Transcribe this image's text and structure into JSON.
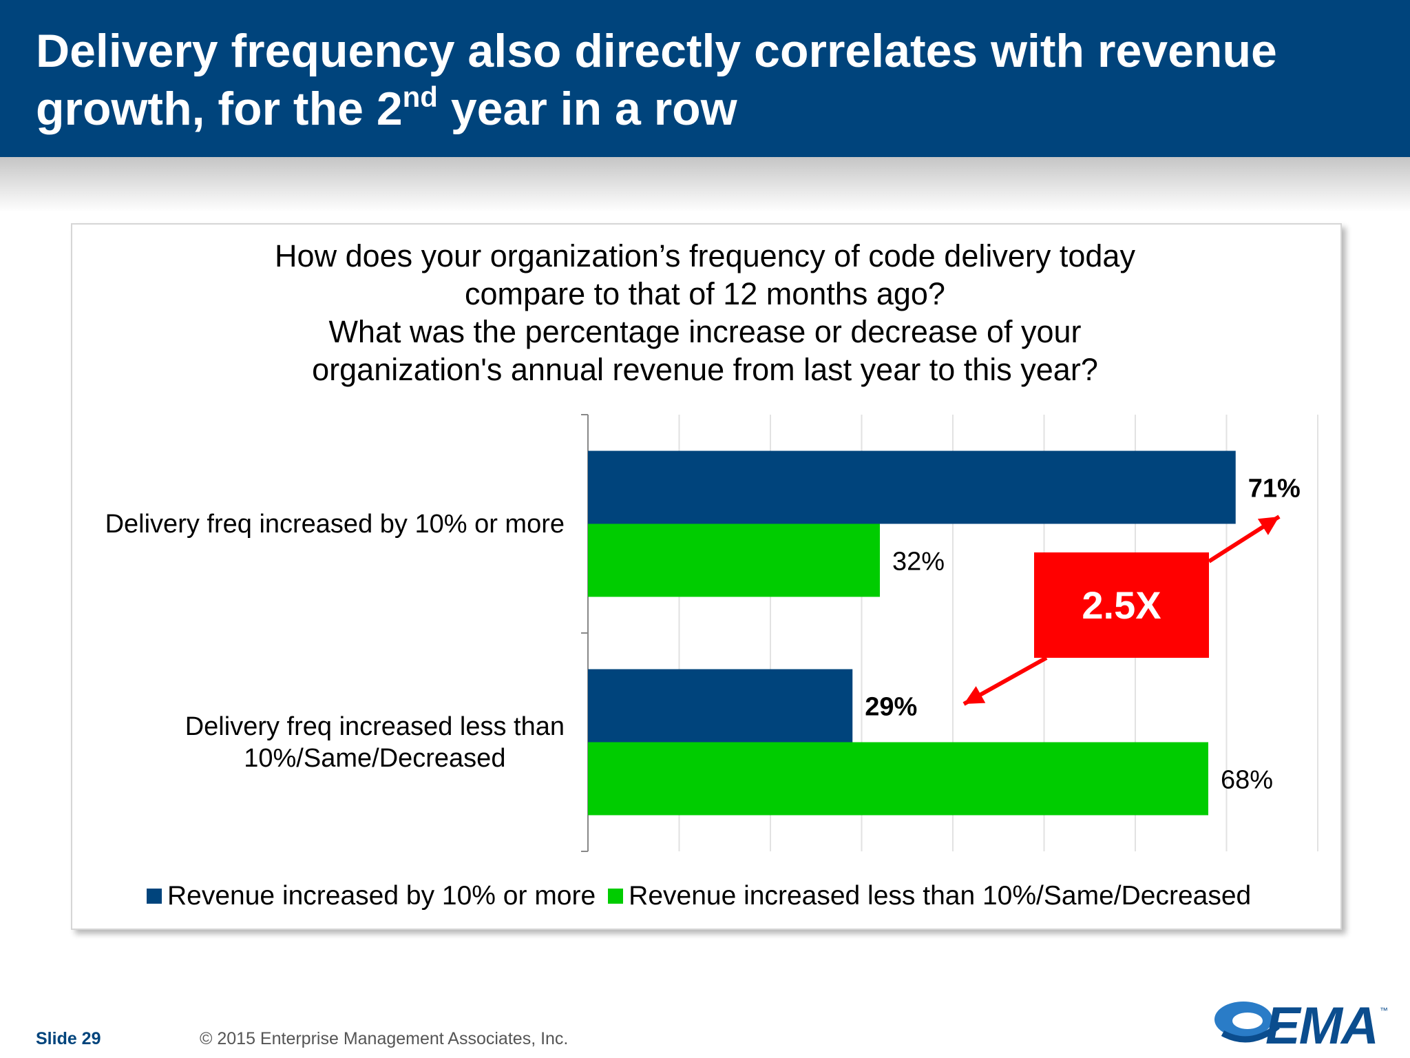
{
  "header": {
    "title_line1": "Delivery frequency also directly correlates with revenue",
    "title_line2_before": "growth, for the 2",
    "title_line2_sup": "nd",
    "title_line2_after": " year in a row"
  },
  "question": {
    "lines": [
      "How does your organization’s frequency of code delivery today",
      "compare to that of 12 months ago?",
      "What was the percentage increase or decrease of your",
      "organization's annual revenue from last year to this year?"
    ]
  },
  "chart_data": {
    "type": "bar",
    "orientation": "horizontal",
    "categories": [
      "Delivery freq increased by 10% or more",
      "Delivery freq increased less than 10%/Same/Decreased"
    ],
    "category_label_lines": [
      [
        "Delivery freq increased by 10% or more"
      ],
      [
        "Delivery freq increased less than",
        "10%/Same/Decreased"
      ]
    ],
    "series": [
      {
        "name": "Revenue increased by 10% or more",
        "color": "#00447c",
        "values": [
          71,
          29
        ],
        "labels": [
          "71%",
          "29%"
        ],
        "bold_labels": true
      },
      {
        "name": "Revenue increased less than 10%/Same/Decreased",
        "color": "#00cc00",
        "values": [
          32,
          68
        ],
        "labels": [
          "32%",
          "68%"
        ],
        "bold_labels": false
      }
    ],
    "xlim": [
      0,
      80
    ],
    "grid": true,
    "legend": "bottom",
    "annotation": {
      "text": "2.5X",
      "color": "#ff0000"
    }
  },
  "footer": {
    "slide": "Slide 29",
    "copyright": "© 2015 Enterprise Management Associates, Inc.",
    "logo_text": "EMA",
    "logo_tm": "™"
  },
  "colors": {
    "brand": "#00447c",
    "accent": "#ff0000"
  }
}
